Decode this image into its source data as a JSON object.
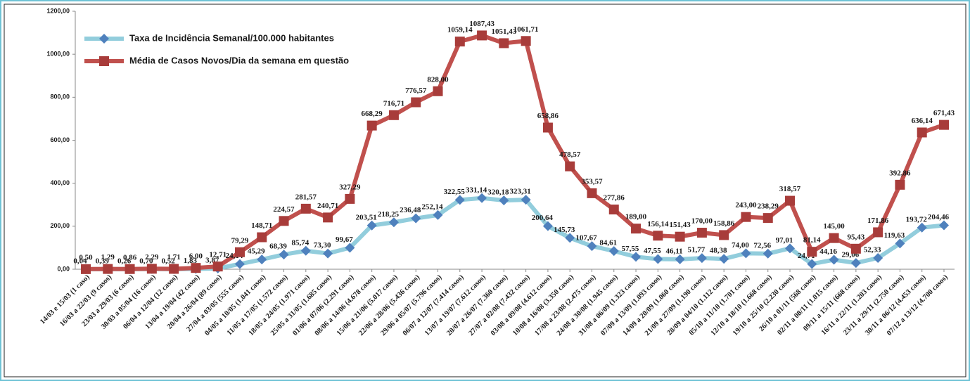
{
  "chart_data": {
    "type": "line",
    "categories": [
      "14/03 e 15/03 (1 caso)",
      "16/03 a 22/03 (9 casos)",
      "23/03 a 29/03 (6 casos)",
      "30/03 a 05/04 (16 casos)",
      "06/04 a 12/04 (12 casos)",
      "13/04 a 19/04 (42 casos)",
      "20/04 a 26/04 (89 casos)",
      "27/04 a 03/05 (555 casos)",
      "04/05 a 10/05 (1.041 casos)",
      "11/05 a 17/05 (1.572 casos)",
      "18/05 a 24/05 (1.971 casos)",
      "25/05 a 31/05 (1.685 casos)",
      "01/06 a 07/06 (2.291 casos)",
      "08/06 a 14/06 (4.678 casos)",
      "15/06 a 21/06 (5.017 casos)",
      "22/06 a 28/06 (5.436 casos)",
      "29/06 a 05/07 (5.796 casos)",
      "06/07 a 12/07 (7.414 casos)",
      "13/07 a 19/07 (7.612 casos)",
      "20/07 a 26/07 (7.360 casos)",
      "27/07 a 02/08 (7.432 casos)",
      "03/08 a 09/08 (4.612 casos)",
      "10/08 a 16/08 (3.350 casos)",
      "17/08 a 23/08 (2.475 casos)",
      "24/08 a 30/08 (1.945 casos)",
      "31/08 a 06/09 (1.323 casos)",
      "07/09 a 13/09 (1.093 casos)",
      "14/09 a 20/09 (1.060 casos)",
      "21/09 a 27/09 (1.190 casos)",
      "28/09 a 04/10 (1.112 casos)",
      "05/10 a 11/10 (1.701 casos)",
      "12/10 a 18/10 (1.668 casos)",
      "19/10 a 25/10 (2.230 casos)",
      "26/10 a 01/11 (568 casos)",
      "02/11 a 08/11 (1.015 casos)",
      "09/11 a 15/11 (668 casos)",
      "16/11 a 22/11 (1.203 casos)",
      "23/11 a 29/11 (2.750 casos)",
      "30/11 a 06/12 (4.453 casos)",
      "07/12 a 13/12 (4.700 casos)"
    ],
    "series": [
      {
        "name": "Taxa de Incidência Semanal/100.000 habitantes",
        "color": "#92cddc",
        "marker_color": "#4f81bd",
        "marker": "diamond",
        "values": [
          0.04,
          0.39,
          0.26,
          0.7,
          0.52,
          1.83,
          3.87,
          24.14,
          45.29,
          68.39,
          85.74,
          73.3,
          99.67,
          203.51,
          218.25,
          236.48,
          252.14,
          322.55,
          331.14,
          320.18,
          323.31,
          200.64,
          145.73,
          107.67,
          84.61,
          57.55,
          47.55,
          46.11,
          51.77,
          48.38,
          74.0,
          72.56,
          97.01,
          24.71,
          44.16,
          29.06,
          52.33,
          119.63,
          193.72,
          204.46
        ],
        "value_labels": [
          "0,04",
          "0,39",
          "0,26",
          "0,70",
          "0,52",
          "1,83",
          "3,87",
          "24,14",
          "45,29",
          "68,39",
          "85,74",
          "73,30",
          "99,67",
          "203,51",
          "218,25",
          "236,48",
          "252,14",
          "322,55",
          "331,14",
          "320,18",
          "323,31",
          "200,64",
          "145,73",
          "107,67",
          "84,61",
          "57,55",
          "47,55",
          "46,11",
          "51,77",
          "48,38",
          "74,00",
          "72,56",
          "97,01",
          "24,71",
          "44,16",
          "29,06",
          "52,33",
          "119,63",
          "193,72",
          "204,46"
        ]
      },
      {
        "name": "Média de Casos Novos/Dia da semana em questão",
        "color": "#c0504d",
        "marker_color": "#a83c3a",
        "marker": "square",
        "values": [
          0.5,
          1.29,
          0.86,
          2.29,
          1.71,
          6.0,
          12.71,
          79.29,
          148.71,
          224.57,
          281.57,
          240.71,
          327.29,
          668.29,
          716.71,
          776.57,
          828.0,
          1059.14,
          1087.43,
          1051.43,
          1061.71,
          658.86,
          478.57,
          353.57,
          277.86,
          189.0,
          156.14,
          151.43,
          170.0,
          158.86,
          243.0,
          238.29,
          318.57,
          81.14,
          145.0,
          95.43,
          171.86,
          392.86,
          636.14,
          671.43
        ],
        "value_labels": [
          "0,50",
          "1,29",
          "0,86",
          "2,29",
          "1,71",
          "6,00",
          "12,71",
          "79,29",
          "148,71",
          "224,57",
          "281,57",
          "240,71",
          "327,29",
          "668,29",
          "716,71",
          "776,57",
          "828,00",
          "1059,14",
          "1087,43",
          "1051,43",
          "1061,71",
          "658,86",
          "478,57",
          "353,57",
          "277,86",
          "189,00",
          "156,14",
          "151,43",
          "170,00",
          "158,86",
          "243,00",
          "238,29",
          "318,57",
          "81,14",
          "145,00",
          "95,43",
          "171,86",
          "392,86",
          "636,14",
          "671,43"
        ]
      }
    ],
    "ylim": [
      0,
      1200
    ],
    "yticks": [
      {
        "value": 0,
        "label": "0,00"
      },
      {
        "value": 200,
        "label": "200,00"
      },
      {
        "value": 400,
        "label": "400,00"
      },
      {
        "value": 600,
        "label": "600,00"
      },
      {
        "value": 800,
        "label": "800,00"
      },
      {
        "value": 1000,
        "label": "1000,00"
      },
      {
        "value": 1200,
        "label": "1200,00"
      }
    ],
    "legend": "upper left",
    "grid": false
  }
}
